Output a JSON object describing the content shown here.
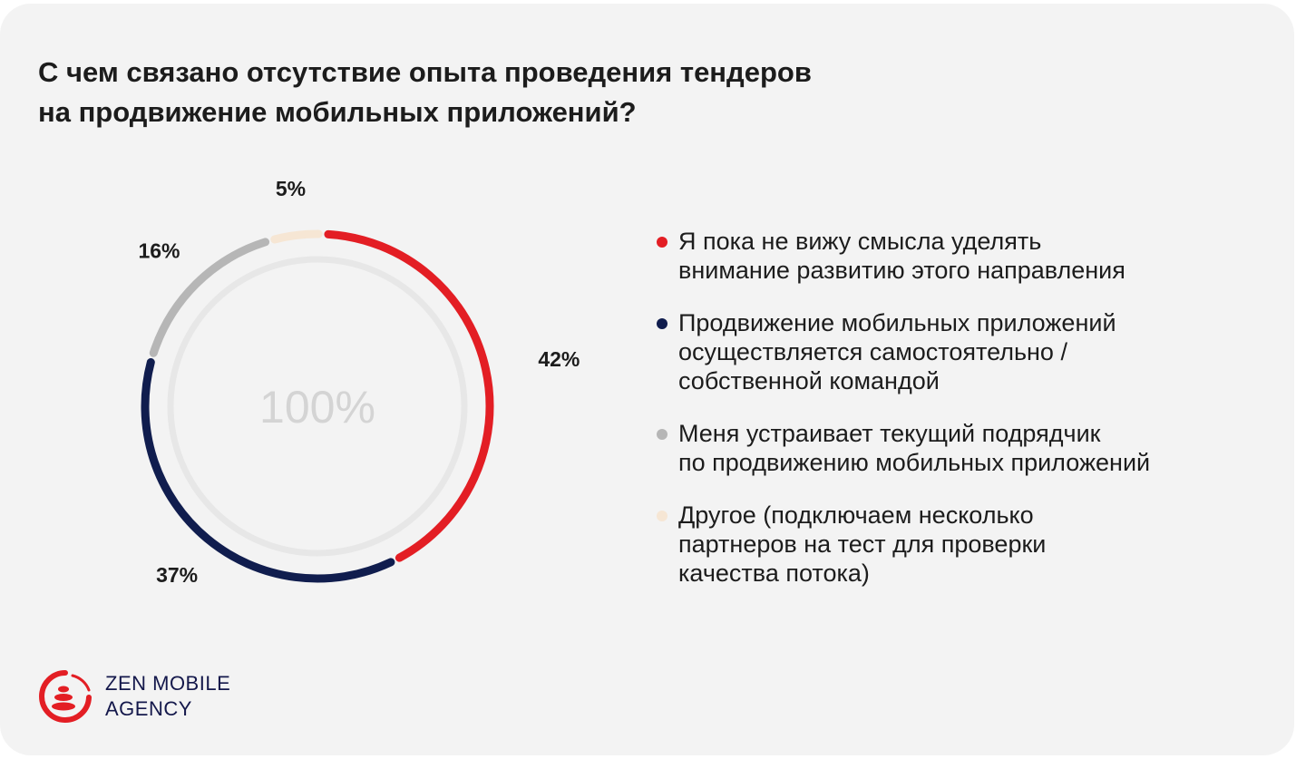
{
  "title_lines": [
    "С чем связано отсутствие опыта проведения тендеров",
    "на продвижение мобильных приложений?"
  ],
  "chart_data": {
    "type": "pie",
    "style": "donut",
    "center_label": "100%",
    "slices": [
      {
        "value": 42,
        "label": "42%",
        "color": "#e31e24",
        "legend_lines": [
          "Я пока не вижу смысла уделять",
          "внимание развитию этого направления"
        ]
      },
      {
        "value": 37,
        "label": "37%",
        "color": "#101d4e",
        "legend_lines": [
          "Продвижение мобильных приложений",
          "осуществляется самостоятельно /",
          "собственной командой"
        ]
      },
      {
        "value": 16,
        "label": "16%",
        "color": "#b6b6b6",
        "legend_lines": [
          "Меня устраивает текущий подрядчик",
          "по продвижению мобильных приложений"
        ]
      },
      {
        "value": 5,
        "label": "5%",
        "color": "#f6e6d4",
        "legend_lines": [
          "Другое (подключаем несколько",
          "партнеров на тест для проверки",
          "качества потока)"
        ]
      }
    ],
    "legend_placement": "right"
  },
  "logo": {
    "lines": [
      "ZEN MOBILE",
      "AGENCY"
    ],
    "icon": "zen-stones-enso-icon",
    "color": "#e31e24"
  }
}
